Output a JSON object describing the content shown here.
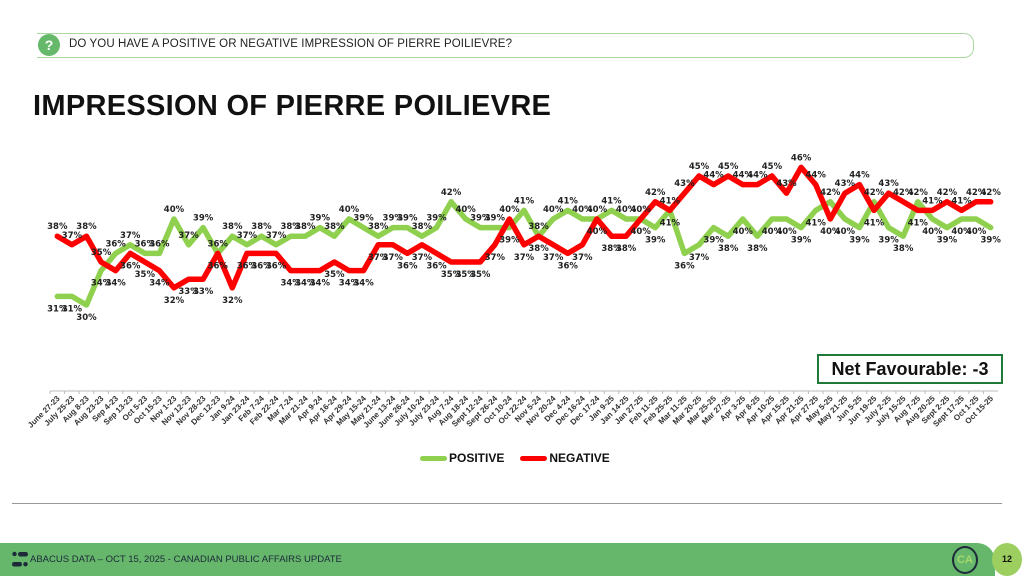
{
  "header": {
    "question": "DO YOU HAVE A POSITIVE OR NEGATIVE IMPRESSION OF PIERRE POILIEVRE?",
    "icon": "question-icon"
  },
  "title": "IMPRESSION OF PIERRE POILIEVRE",
  "net_favourable": "Net Favourable: -3",
  "footer": {
    "text": "ABACUS DATA – OCT 15, 2025 - CANADIAN PUBLIC AFFAIRS UPDATE",
    "badge": "CA",
    "page": "12"
  },
  "colors": {
    "positive": "#8fd14f",
    "negative": "#ff0000",
    "brand": "#66b66b"
  },
  "chart_data": {
    "type": "line",
    "title": "IMPRESSION OF PIERRE POILIEVRE",
    "xlabel": "",
    "ylabel": "",
    "ylim": [
      20,
      50
    ],
    "grid": false,
    "legend": "bottom",
    "categories": [
      "June 27-23",
      "July 25-23",
      "Aug 8-23",
      "Aug 23-23",
      "Sep 4-23",
      "Sep 13-23",
      "Oct 5-23",
      "Oct 15-23",
      "Nov 1-23",
      "Nov 12-23",
      "Nov 28-23",
      "Dec 12-23",
      "Jan 9-24",
      "Jan 23-24",
      "Feb 7-24",
      "Feb 22-24",
      "Mar 7-24",
      "Mar 21-24",
      "Apr 9-24",
      "Apr 16-24",
      "Apr 29-24",
      "May 15-24",
      "May 21-24",
      "June 13-24",
      "June 26-24",
      "July 10-24",
      "July 23-24",
      "Aug 7-24",
      "Aug 18-24",
      "Sept 12-24",
      "Sept 26-24",
      "Oct 10-24",
      "Oct 22-24",
      "Nov 5-24",
      "Nov 20-24",
      "Dec 4-24",
      "Dec 16-24",
      "Dec 17-24",
      "Jan 9-25",
      "Jan 14-25",
      "Jan 27-25",
      "Feb 11-25",
      "Feb 25-25",
      "Mar 11-25",
      "Mar 20-25",
      "Mar 25-25",
      "Mar 27-25",
      "Apr 3-25",
      "Apr 8-25",
      "Apr 10-25",
      "Apr 15-25",
      "Apr 21-25",
      "Apr 27-25",
      "May 5-25",
      "May 21-25",
      "Jun 5-25",
      "Jun 19-25",
      "July 2-25",
      "July 15-25",
      "Aug 7-25",
      "Aug 20-25",
      "Sept 2-25",
      "Sept 17-25",
      "Oct 1-25",
      "Oct 15-25"
    ],
    "series": [
      {
        "name": "POSITIVE",
        "color": "#8fd14f",
        "values": [
          31,
          31,
          30,
          34,
          36,
          37,
          36,
          36,
          40,
          37,
          39,
          36,
          38,
          37,
          38,
          37,
          38,
          38,
          39,
          38,
          40,
          39,
          38,
          39,
          39,
          38,
          39,
          42,
          40,
          39,
          39,
          39,
          41,
          38,
          40,
          41,
          40,
          40,
          41,
          40,
          40,
          39,
          41,
          36,
          37,
          39,
          38,
          40,
          38,
          40,
          40,
          39,
          41,
          42,
          40,
          39,
          42,
          39,
          38,
          42,
          40,
          39,
          40,
          40,
          39
        ]
      },
      {
        "name": "NEGATIVE",
        "color": "#ff0000",
        "values": [
          38,
          37,
          38,
          35,
          34,
          36,
          35,
          34,
          32,
          33,
          33,
          36,
          32,
          36,
          36,
          36,
          34,
          34,
          34,
          35,
          34,
          34,
          37,
          37,
          36,
          37,
          36,
          35,
          35,
          35,
          37,
          40,
          37,
          38,
          37,
          36,
          37,
          40,
          38,
          38,
          40,
          42,
          41,
          43,
          45,
          44,
          45,
          44,
          44,
          45,
          43,
          46,
          44,
          40,
          43,
          44,
          41,
          43,
          42,
          41,
          41,
          42,
          41,
          42,
          42
        ]
      }
    ]
  }
}
